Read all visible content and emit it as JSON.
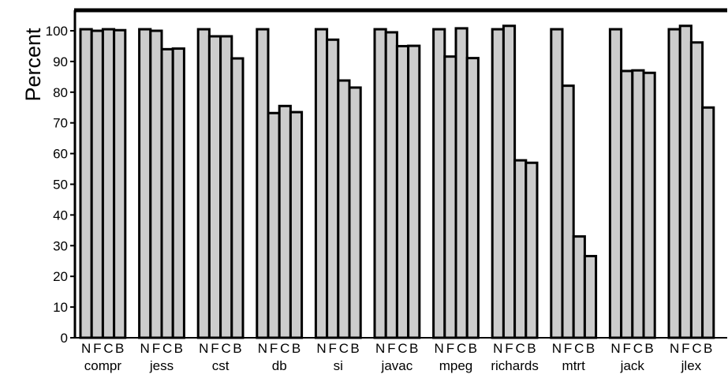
{
  "chart_data": {
    "type": "bar",
    "ylabel": "Percent",
    "xlabel": "",
    "title": "",
    "ylim": [
      0,
      105
    ],
    "yticks": [
      0,
      10,
      20,
      30,
      40,
      50,
      60,
      70,
      80,
      90,
      100
    ],
    "sub_categories": [
      "N",
      "F",
      "C",
      "B"
    ],
    "groups": [
      {
        "name": "compr",
        "values": [
          100.5,
          100,
          100.5,
          100.2
        ]
      },
      {
        "name": "jess",
        "values": [
          100.5,
          100,
          94,
          94.2
        ]
      },
      {
        "name": "cst",
        "values": [
          100.5,
          98.2,
          98.2,
          91
        ]
      },
      {
        "name": "db",
        "values": [
          100.5,
          73.2,
          75.5,
          73.5
        ]
      },
      {
        "name": "si",
        "values": [
          100.5,
          97.1,
          83.8,
          81.5
        ]
      },
      {
        "name": "javac",
        "values": [
          100.5,
          99.5,
          95,
          95.1
        ]
      },
      {
        "name": "mpeg",
        "values": [
          100.5,
          91.6,
          100.8,
          91.1
        ]
      },
      {
        "name": "richards",
        "values": [
          100.5,
          101.6,
          57.8,
          57
        ]
      },
      {
        "name": "mtrt",
        "values": [
          100.5,
          82.1,
          33,
          26.6
        ]
      },
      {
        "name": "jack",
        "values": [
          100.5,
          86.9,
          87.1,
          86.3
        ]
      },
      {
        "name": "jlex",
        "values": [
          100.5,
          101.6,
          96.2,
          75
        ]
      }
    ],
    "bar_color": "#cccccc",
    "stroke_color": "#000000",
    "grid": false
  }
}
